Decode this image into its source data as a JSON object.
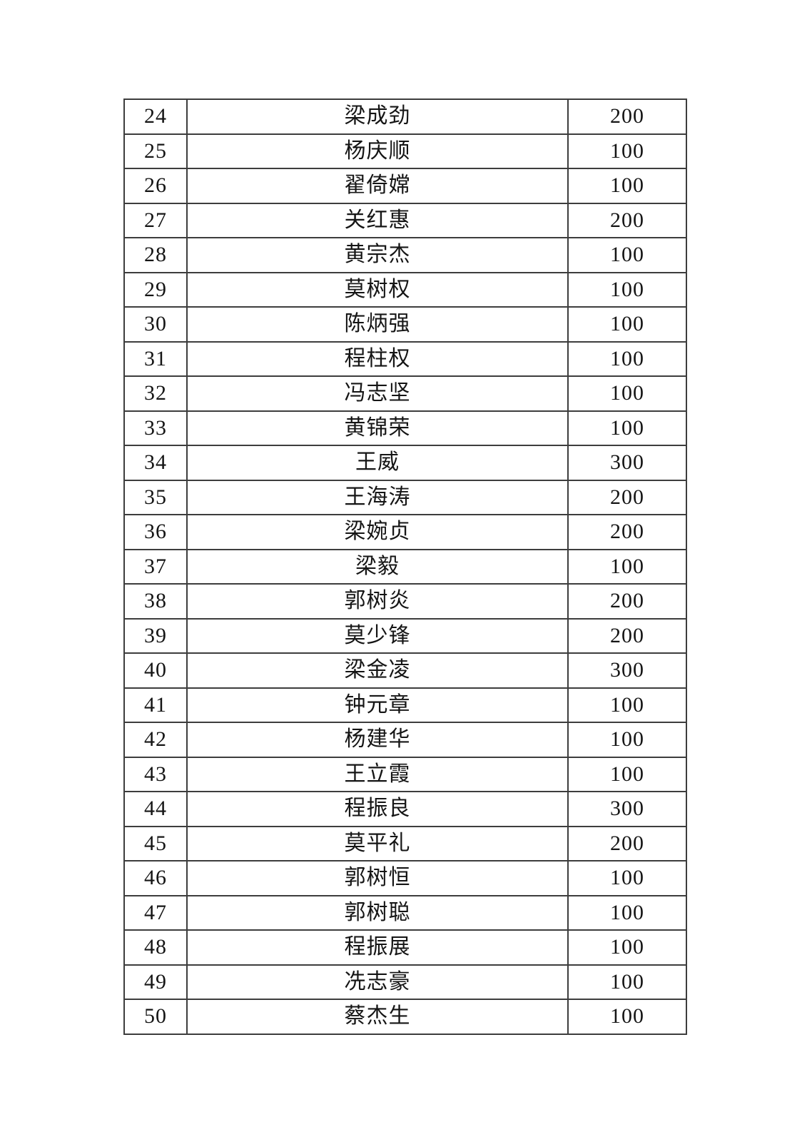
{
  "page": {
    "background_color": "#ffffff",
    "text_color": "#151515"
  },
  "table": {
    "border_color": "#3d3d3d",
    "row_number_range": "24-50",
    "rows": [
      {
        "no": "24",
        "name": "梁成劲",
        "amount": "200"
      },
      {
        "no": "25",
        "name": "杨庆顺",
        "amount": "100"
      },
      {
        "no": "26",
        "name": "翟倚嫦",
        "amount": "100"
      },
      {
        "no": "27",
        "name": "关红惠",
        "amount": "200"
      },
      {
        "no": "28",
        "name": "黄宗杰",
        "amount": "100"
      },
      {
        "no": "29",
        "name": "莫树权",
        "amount": "100"
      },
      {
        "no": "30",
        "name": "陈炳强",
        "amount": "100"
      },
      {
        "no": "31",
        "name": "程柱权",
        "amount": "100"
      },
      {
        "no": "32",
        "name": "冯志坚",
        "amount": "100"
      },
      {
        "no": "33",
        "name": "黄锦荣",
        "amount": "100"
      },
      {
        "no": "34",
        "name": "王威",
        "amount": "300"
      },
      {
        "no": "35",
        "name": "王海涛",
        "amount": "200"
      },
      {
        "no": "36",
        "name": "梁婉贞",
        "amount": "200"
      },
      {
        "no": "37",
        "name": "梁毅",
        "amount": "100"
      },
      {
        "no": "38",
        "name": "郭树炎",
        "amount": "200"
      },
      {
        "no": "39",
        "name": "莫少锋",
        "amount": "200"
      },
      {
        "no": "40",
        "name": "梁金凌",
        "amount": "300"
      },
      {
        "no": "41",
        "name": "钟元章",
        "amount": "100"
      },
      {
        "no": "42",
        "name": "杨建华",
        "amount": "100"
      },
      {
        "no": "43",
        "name": "王立霞",
        "amount": "100"
      },
      {
        "no": "44",
        "name": "程振良",
        "amount": "300"
      },
      {
        "no": "45",
        "name": "莫平礼",
        "amount": "200"
      },
      {
        "no": "46",
        "name": "郭树恒",
        "amount": "100"
      },
      {
        "no": "47",
        "name": "郭树聪",
        "amount": "100"
      },
      {
        "no": "48",
        "name": "程振展",
        "amount": "100"
      },
      {
        "no": "49",
        "name": "冼志豪",
        "amount": "100"
      },
      {
        "no": "50",
        "name": "蔡杰生",
        "amount": "100"
      }
    ]
  }
}
